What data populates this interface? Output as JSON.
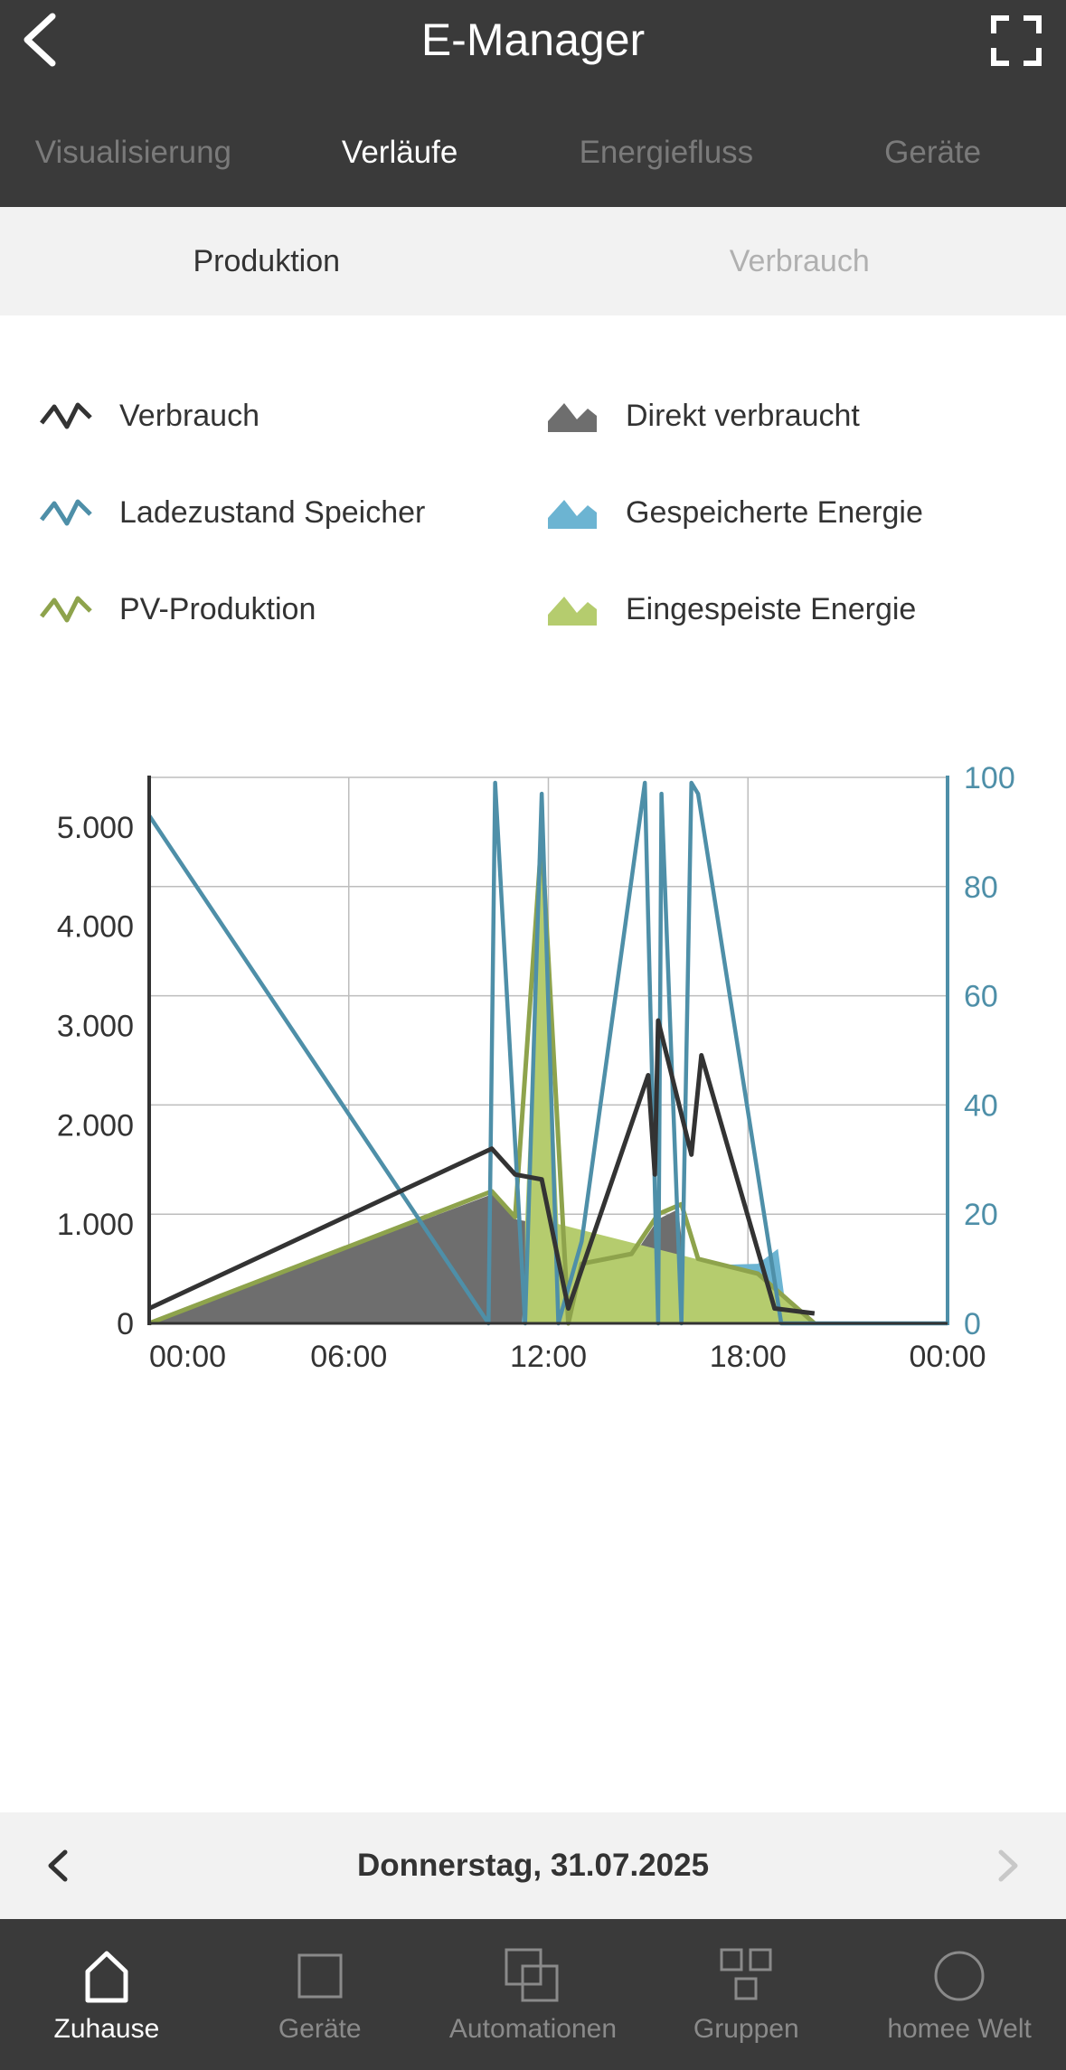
{
  "header": {
    "title": "E-Manager",
    "tabs": [
      "Visualisierung",
      "Verläufe",
      "Energiefluss",
      "Geräte"
    ],
    "active_tab": 1
  },
  "subtabs": {
    "items": [
      "Produktion",
      "Verbrauch"
    ],
    "active": 0
  },
  "legend": [
    {
      "label": "Verbrauch",
      "kind": "line",
      "color": "#333333"
    },
    {
      "label": "Direkt verbraucht",
      "kind": "area",
      "color": "#6e6e6e"
    },
    {
      "label": "Ladezustand Speicher",
      "kind": "line",
      "color": "#4e8fa8"
    },
    {
      "label": "Gespeicherte Energie",
      "kind": "area",
      "color": "#6cb4d2"
    },
    {
      "label": "PV-Produktion",
      "kind": "line",
      "color": "#8ea34c"
    },
    {
      "label": "Eingespeiste Energie",
      "kind": "area",
      "color": "#b5cc6e"
    }
  ],
  "chart_data": {
    "type": "line",
    "x_ticks": [
      "00:00",
      "06:00",
      "12:00",
      "18:00",
      "00:00"
    ],
    "x_range_hours": [
      0,
      24
    ],
    "y_left_ticks": [
      "0",
      "1.000",
      "2.000",
      "3.000",
      "4.000",
      "5.000"
    ],
    "y_left_range": [
      0,
      5500
    ],
    "y_right_ticks": [
      "0",
      "20",
      "40",
      "60",
      "80",
      "100"
    ],
    "y_right_range": [
      0,
      100
    ],
    "grid": true,
    "series": [
      {
        "name": "Direkt verbraucht",
        "kind": "area",
        "color": "#6e6e6e",
        "points": [
          [
            0,
            0
          ],
          [
            10.3,
            1300
          ],
          [
            11,
            1050
          ],
          [
            11.8,
            1000
          ],
          [
            12.6,
            0
          ],
          [
            13,
            550
          ],
          [
            14.5,
            650
          ],
          [
            15.3,
            1050
          ],
          [
            15.9,
            1150
          ],
          [
            16.3,
            0
          ],
          [
            16.5,
            600
          ],
          [
            18,
            450
          ],
          [
            18.9,
            0
          ],
          [
            20,
            0
          ],
          [
            24,
            0
          ]
        ]
      },
      {
        "name": "Gespeicherte Energie",
        "kind": "area",
        "color": "#6cb4d2",
        "points": [
          [
            11.2,
            0
          ],
          [
            11.8,
            2200
          ],
          [
            12.2,
            0
          ],
          [
            12.6,
            700
          ],
          [
            13,
            550
          ],
          [
            18.3,
            600
          ],
          [
            18.9,
            750
          ],
          [
            19.2,
            0
          ]
        ]
      },
      {
        "name": "Eingespeiste Energie",
        "kind": "area",
        "color": "#b5cc6e",
        "points": [
          [
            11.3,
            1000
          ],
          [
            11.8,
            4900
          ],
          [
            12.3,
            1000
          ],
          [
            18.2,
            500
          ],
          [
            19.3,
            200
          ],
          [
            20,
            0
          ]
        ]
      },
      {
        "name": "PV-Produktion",
        "kind": "line",
        "color": "#8ea34c",
        "points": [
          [
            0,
            0
          ],
          [
            10.3,
            1330
          ],
          [
            11,
            1070
          ],
          [
            11.8,
            4900
          ],
          [
            12.6,
            0
          ],
          [
            13,
            600
          ],
          [
            14.5,
            700
          ],
          [
            15.3,
            1100
          ],
          [
            16,
            1200
          ],
          [
            16.5,
            650
          ],
          [
            18.3,
            500
          ],
          [
            20,
            0
          ]
        ]
      },
      {
        "name": "Ladezustand Speicher",
        "kind": "line",
        "axis": "right",
        "color": "#4e8fa8",
        "points": [
          [
            0,
            93
          ],
          [
            10.2,
            0
          ],
          [
            10.4,
            99
          ],
          [
            11.3,
            0
          ],
          [
            11.8,
            97
          ],
          [
            12.3,
            0
          ],
          [
            13,
            15
          ],
          [
            14.9,
            99
          ],
          [
            15.3,
            0
          ],
          [
            15.4,
            97
          ],
          [
            16,
            0
          ],
          [
            16.3,
            99
          ],
          [
            16.5,
            97
          ],
          [
            19,
            0
          ],
          [
            24,
            0
          ]
        ]
      },
      {
        "name": "Verbrauch",
        "kind": "line",
        "color": "#333333",
        "points": [
          [
            0,
            150
          ],
          [
            10.3,
            1760
          ],
          [
            11,
            1500
          ],
          [
            11.8,
            1450
          ],
          [
            12.6,
            150
          ],
          [
            15,
            2500
          ],
          [
            15.2,
            1500
          ],
          [
            15.3,
            3050
          ],
          [
            16.3,
            1700
          ],
          [
            16.6,
            2700
          ],
          [
            18.8,
            150
          ],
          [
            20,
            100
          ]
        ]
      }
    ]
  },
  "date_bar": {
    "date": "Donnerstag, 31.07.2025"
  },
  "bottom_nav": [
    {
      "label": "Zuhause",
      "icon": "home-icon",
      "active": true
    },
    {
      "label": "Geräte",
      "icon": "device-icon",
      "active": false
    },
    {
      "label": "Automationen",
      "icon": "automation-icon",
      "active": false
    },
    {
      "label": "Gruppen",
      "icon": "groups-icon",
      "active": false
    },
    {
      "label": "homee Welt",
      "icon": "world-icon",
      "active": false
    }
  ]
}
